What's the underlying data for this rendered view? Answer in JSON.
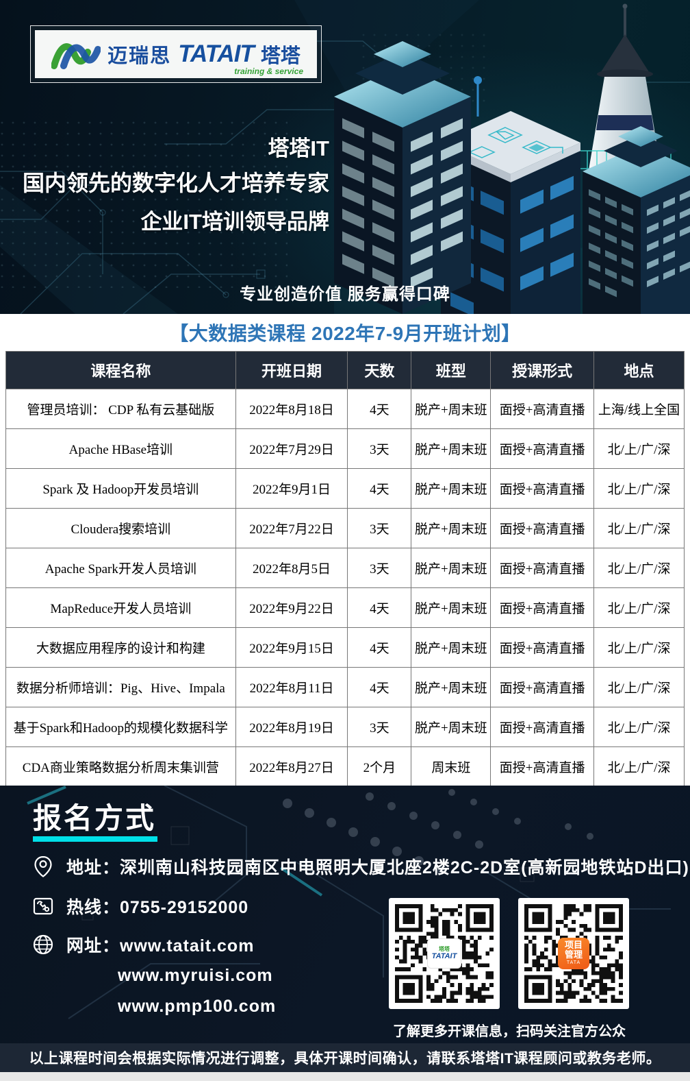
{
  "banner": {
    "logo": {
      "brand_cn": "迈瑞思",
      "brand_en": "TATAIT",
      "brand_suffix": "塔塔",
      "tagline": "training & service"
    },
    "headline1": "塔塔IT",
    "headline2": "国内领先的数字化人才培养专家",
    "headline3": "企业IT培训领导品牌",
    "slogan": "专业创造价值  服务赢得口碑"
  },
  "section_title": "【大数据类课程  2022年7-9月开班计划】",
  "table": {
    "headers": [
      "课程名称",
      "开班日期",
      "天数",
      "班型",
      "授课形式",
      "地点"
    ],
    "rows": [
      [
        "管理员培训： CDP 私有云基础版",
        "2022年8月18日",
        "4天",
        "脱产+周末班",
        "面授+高清直播",
        "上海/线上全国"
      ],
      [
        "Apache HBase培训",
        "2022年7月29日",
        "3天",
        "脱产+周末班",
        "面授+高清直播",
        "北/上/广/深"
      ],
      [
        "Spark 及 Hadoop开发员培训",
        "2022年9月1日",
        "4天",
        "脱产+周末班",
        "面授+高清直播",
        "北/上/广/深"
      ],
      [
        "Cloudera搜索培训",
        "2022年7月22日",
        "3天",
        "脱产+周末班",
        "面授+高清直播",
        "北/上/广/深"
      ],
      [
        "Apache Spark开发人员培训",
        "2022年8月5日",
        "3天",
        "脱产+周末班",
        "面授+高清直播",
        "北/上/广/深"
      ],
      [
        "MapReduce开发人员培训",
        "2022年9月22日",
        "4天",
        "脱产+周末班",
        "面授+高清直播",
        "北/上/广/深"
      ],
      [
        "大数据应用程序的设计和构建",
        "2022年9月15日",
        "4天",
        "脱产+周末班",
        "面授+高清直播",
        "北/上/广/深"
      ],
      [
        "数据分析师培训：Pig、Hive、Impala",
        "2022年8月11日",
        "4天",
        "脱产+周末班",
        "面授+高清直播",
        "北/上/广/深"
      ],
      [
        "基于Spark和Hadoop的规模化数据科学",
        "2022年8月19日",
        "3天",
        "脱产+周末班",
        "面授+高清直播",
        "北/上/广/深"
      ],
      [
        "CDA商业策略数据分析周末集训营",
        "2022年8月27日",
        "2个月",
        "周末班",
        "面授+高清直播",
        "北/上/广/深"
      ]
    ]
  },
  "signup": {
    "title": "报名方式",
    "address": "地址：深圳南山科技园南区中电照明大厦北座2楼2C-2D室(高新园地铁站D出口)",
    "hotline": "热线：0755-29152000",
    "web_line1": "网址：www.tatait.com",
    "websites_extra": [
      "www.myruisi.com",
      "www.pmp100.com"
    ],
    "qr_caption": "了解更多开课信息，扫码关注官方公众号",
    "qr_left_logo_line1": "塔塔",
    "qr_left_logo_line2": "TATAIT",
    "qr_right_logo_line1": "项目管理",
    "qr_right_logo_line2": "TATA"
  },
  "footer": {
    "note": "以上课程时间会根据实际情况进行调整，具体开课时间确认，请联系塔塔IT课程顾问或教务老师。"
  },
  "colors": {
    "accent_blue": "#2e75b6",
    "cyan_underline": "#00e0e8",
    "qr_orange": "#ef5a17",
    "logo_blue": "#1a4e9e",
    "logo_green": "#33a135",
    "table_header_bg": "#222b38",
    "dark_bg": "#0a1421"
  }
}
